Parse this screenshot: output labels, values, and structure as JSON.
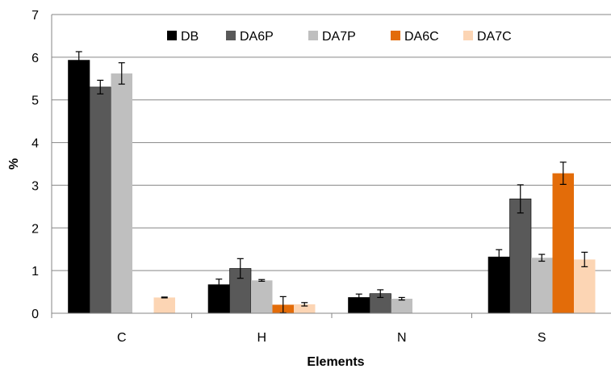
{
  "chart_data": {
    "type": "bar",
    "xlabel": "Elements",
    "ylabel": "%",
    "ylim": [
      0,
      7
    ],
    "yticks": [
      "0",
      "1",
      "2",
      "3",
      "4",
      "5",
      "6",
      "7"
    ],
    "grid": true,
    "legend_position": "top",
    "categories": [
      "C",
      "H",
      "N",
      "S"
    ],
    "series": [
      {
        "name": "DB",
        "color": "#000000",
        "values": [
          5.93,
          0.67,
          0.37,
          1.32
        ],
        "errors": [
          0.2,
          0.13,
          0.08,
          0.17
        ]
      },
      {
        "name": "DA6P",
        "color": "#595959",
        "values": [
          5.3,
          1.05,
          0.46,
          2.68
        ],
        "errors": [
          0.16,
          0.23,
          0.09,
          0.33
        ]
      },
      {
        "name": "DA7P",
        "color": "#bfbfbf",
        "values": [
          5.62,
          0.77,
          0.34,
          1.3
        ],
        "errors": [
          0.25,
          0.02,
          0.03,
          0.08
        ]
      },
      {
        "name": "DA6C",
        "color": "#e36c09",
        "values": [
          0,
          0.2,
          0,
          3.28
        ],
        "errors": [
          0,
          0.19,
          0,
          0.26
        ]
      },
      {
        "name": "DA7C",
        "color": "#fcd5b4",
        "values": [
          0.37,
          0.21,
          0,
          1.26
        ],
        "errors": [
          0.01,
          0.04,
          0,
          0.17
        ]
      }
    ]
  }
}
